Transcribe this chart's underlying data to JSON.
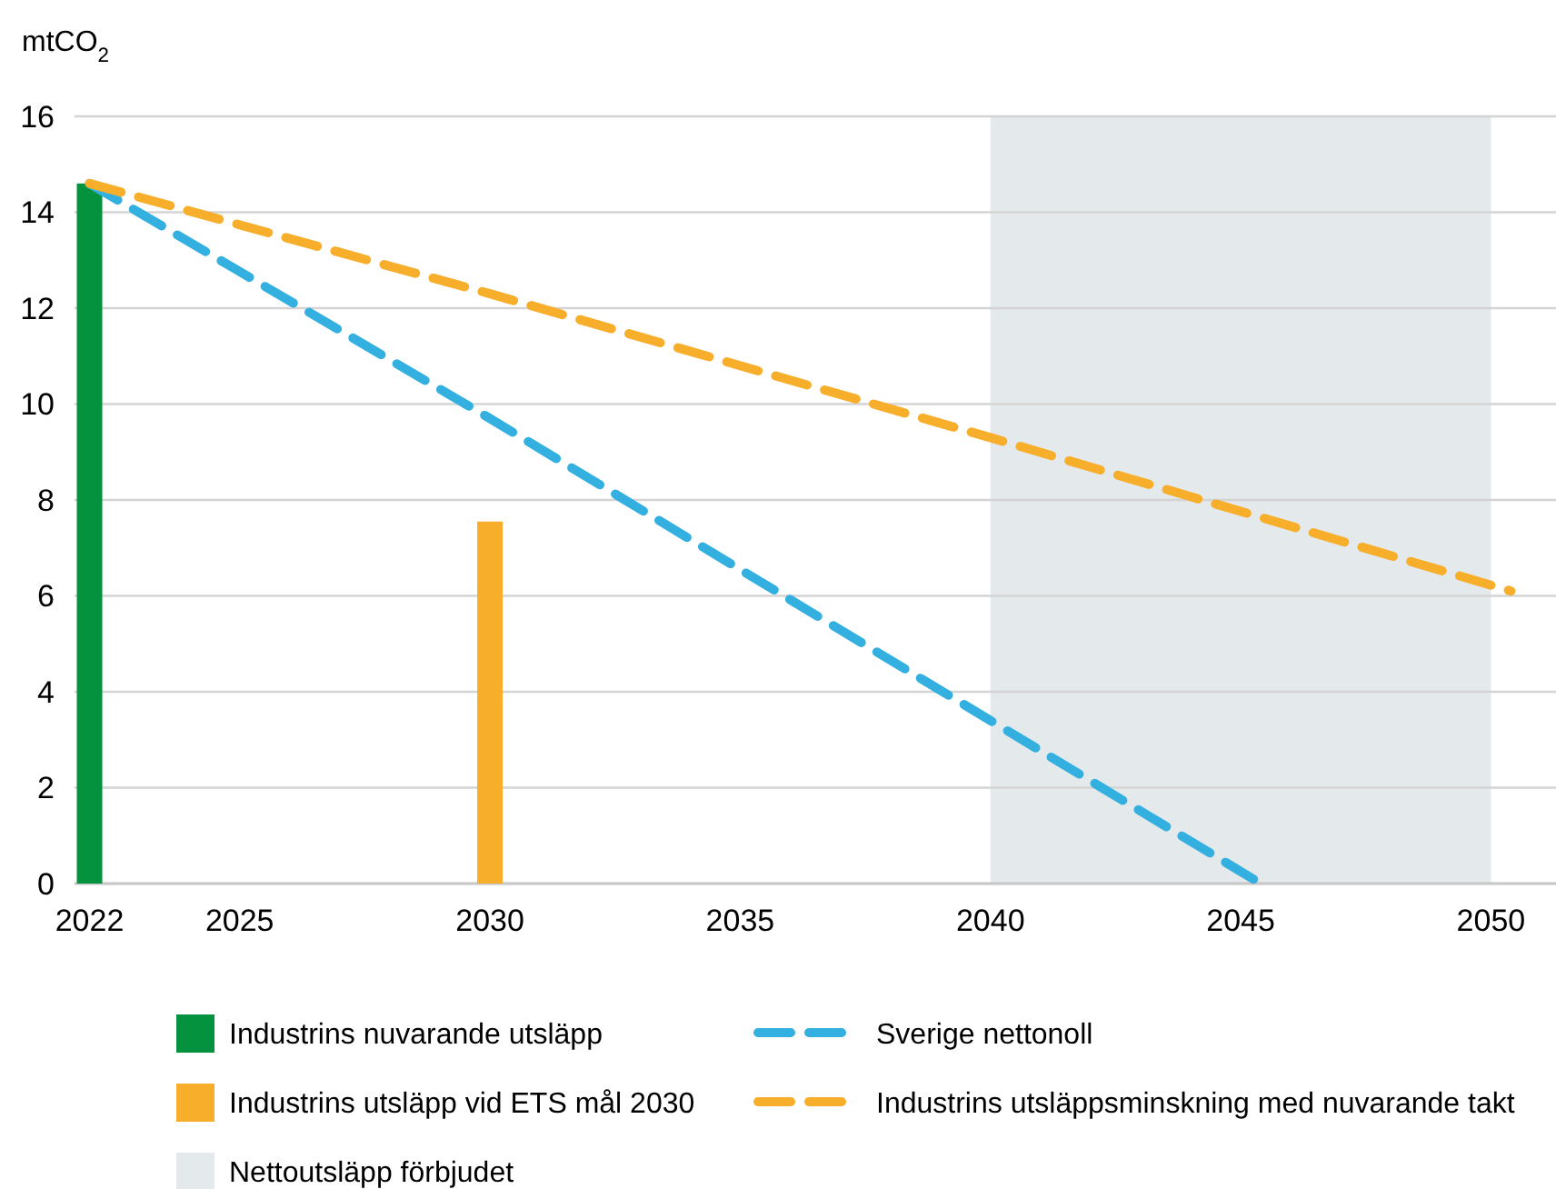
{
  "chart_data": {
    "type": "line",
    "ylabel": "mtCO$_{2}$",
    "xlim": [
      2021.7,
      2051.3
    ],
    "ylim": [
      0,
      16
    ],
    "xticks": [
      2022,
      2025,
      2030,
      2035,
      2040,
      2045,
      2050
    ],
    "yticks": [
      0,
      2,
      4,
      6,
      8,
      10,
      12,
      14,
      16
    ],
    "grid": "y",
    "legend": "bottom",
    "line_style": "dashed",
    "marker": "none",
    "series": [
      {
        "type": "bar",
        "name": "Industrins nuvarande utsläpp",
        "color": "#05923f",
        "x": [
          2022
        ],
        "values": [
          14.6
        ]
      },
      {
        "type": "bar",
        "name": "Industrins utsläpp vid ETS mål 2030",
        "color": "#f7ae2a",
        "x": [
          2030
        ],
        "values": [
          7.55
        ]
      },
      {
        "name": "Sverige nettonoll",
        "color": "#33b0e0",
        "x": [
          2022,
          2030,
          2040,
          2045.4
        ],
        "values": [
          14.6,
          9.7,
          3.4,
          0
        ]
      },
      {
        "name": "Industrins utsläppsminskning med nuvarande takt",
        "color": "#f7ae2a",
        "x": [
          2022,
          2030,
          2040,
          2050.4
        ],
        "values": [
          14.6,
          12.3,
          9.3,
          6.1
        ]
      }
    ],
    "bands": [
      {
        "axis": "x",
        "from": 2040,
        "to": 2050,
        "label": "Nettoutsläpp förbjudet",
        "color": "#e4e9ec"
      }
    ]
  }
}
